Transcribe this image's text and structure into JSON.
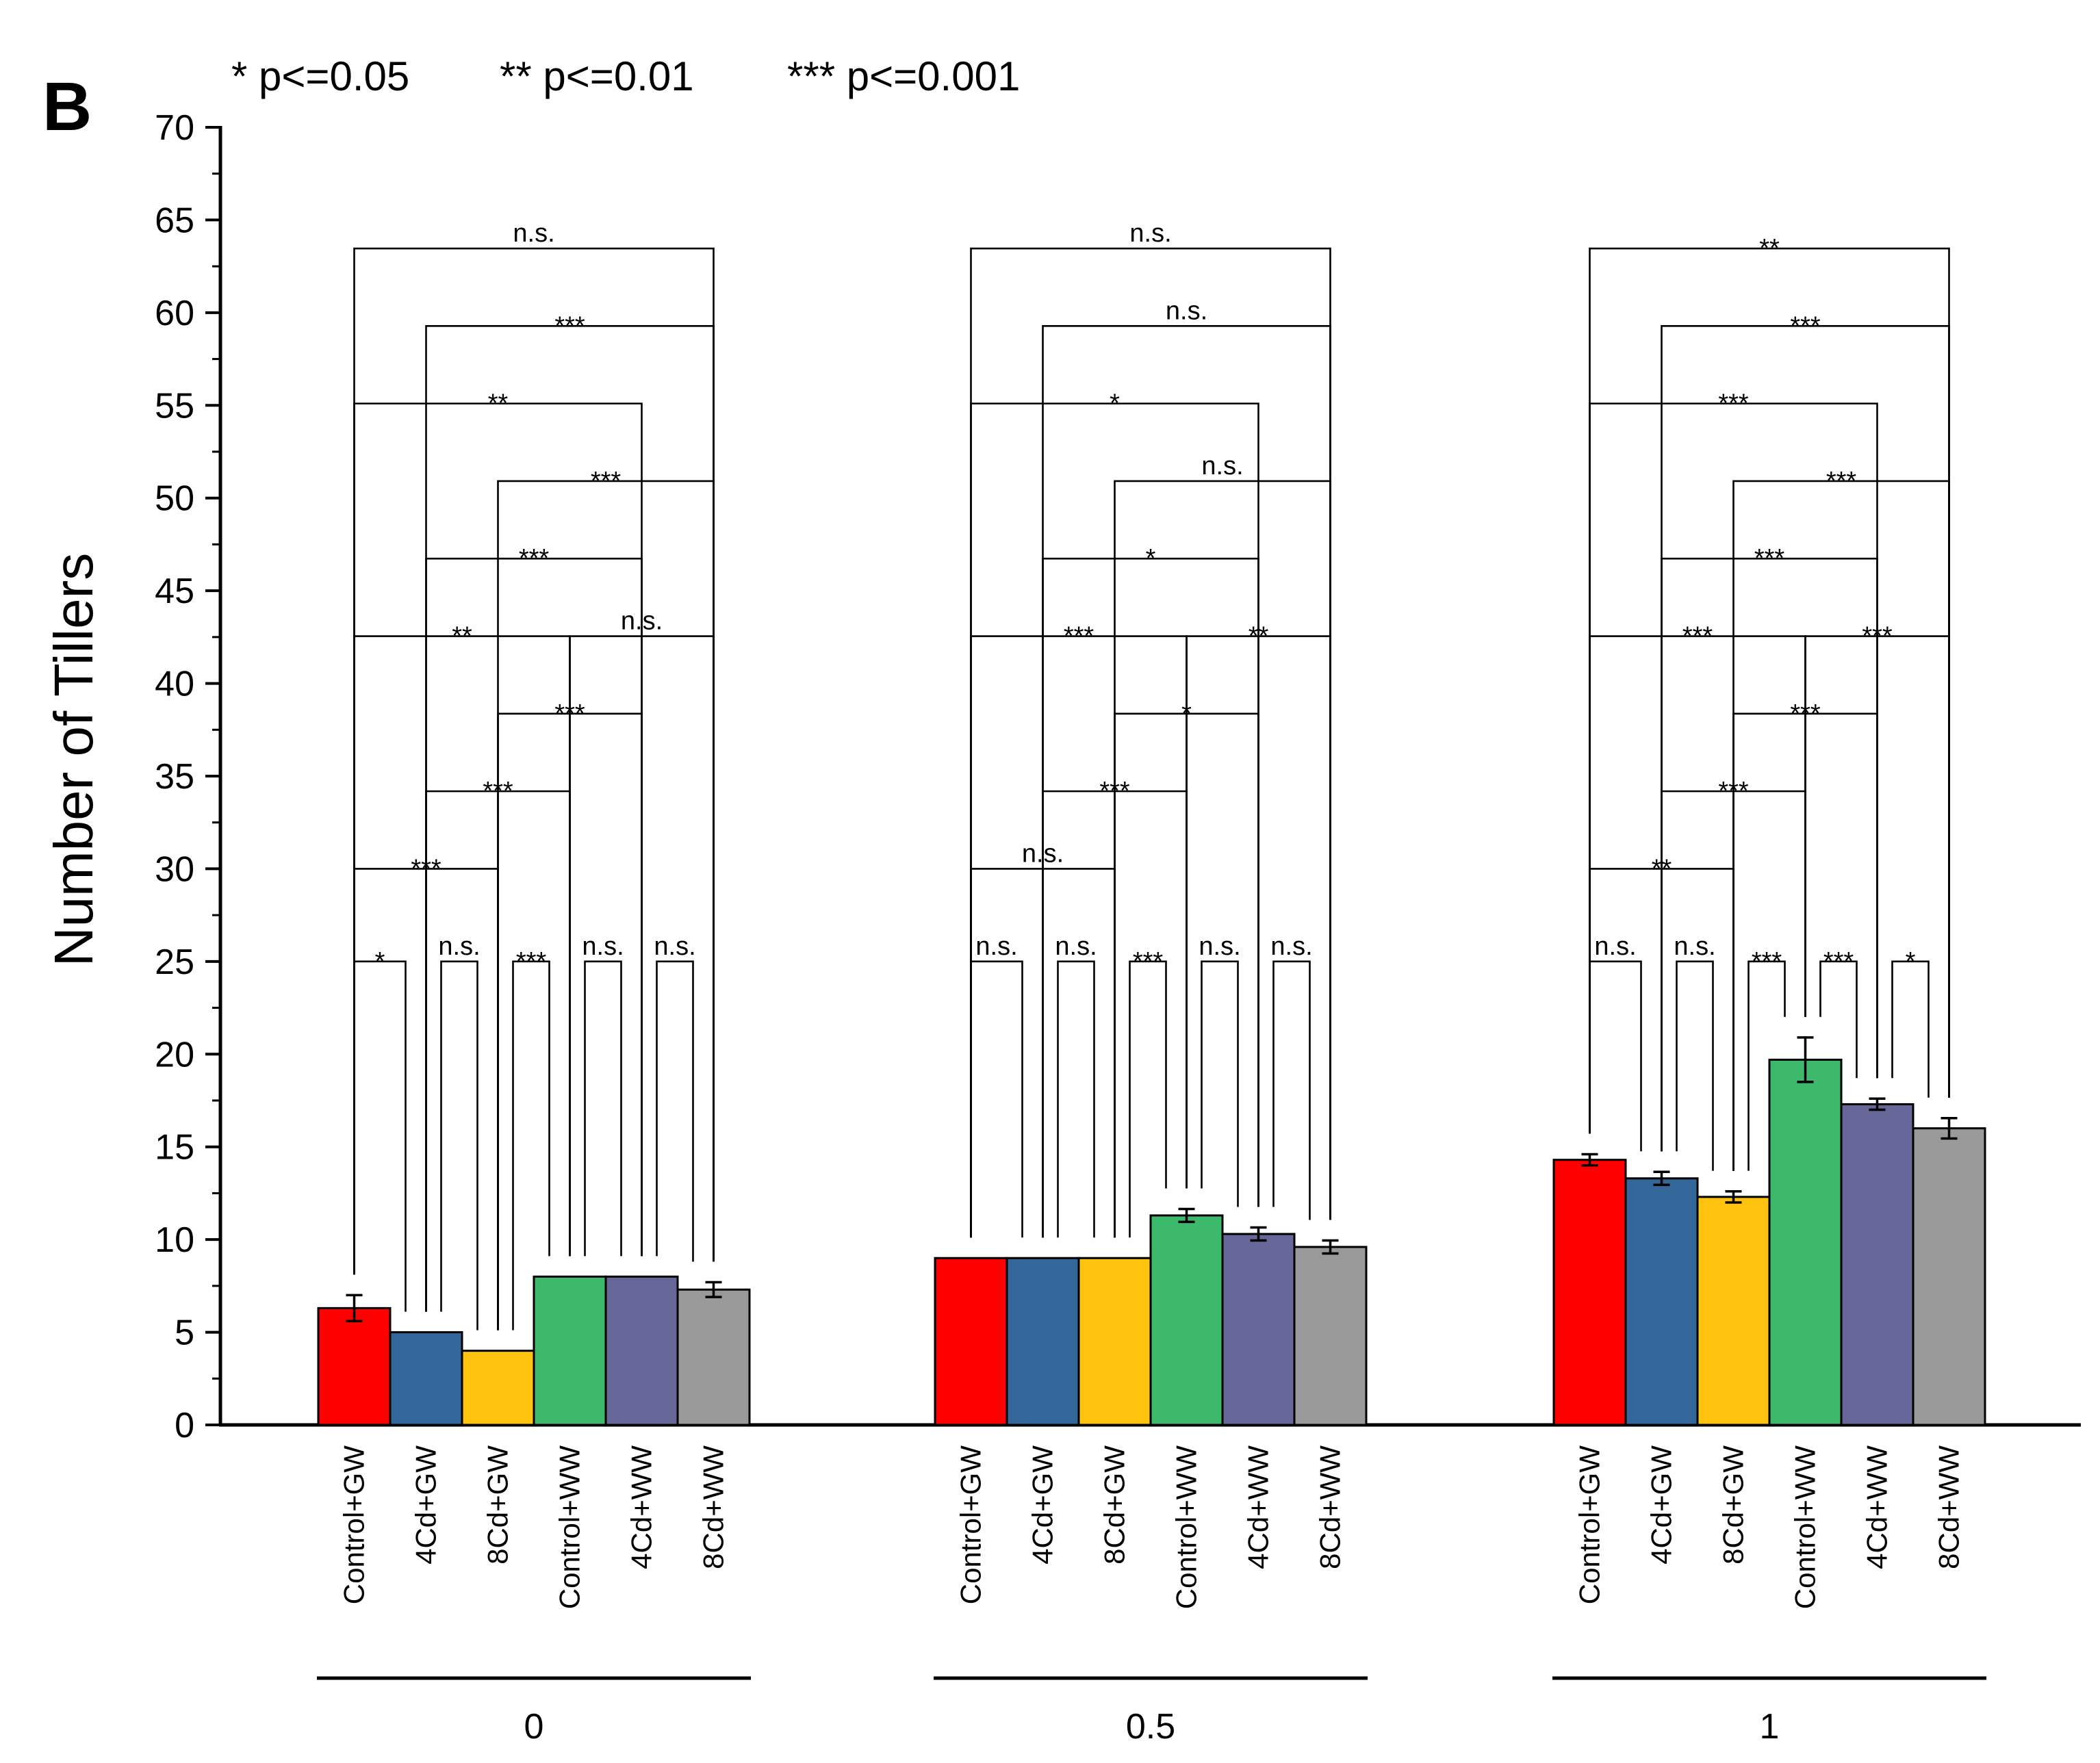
{
  "panel_letter": "B",
  "legend_text": [
    "* p<=0.05",
    "** p<=0.01",
    "*** p<=0.001"
  ],
  "chart_data": {
    "type": "bar",
    "ylabel": "Number of Tillers",
    "xlabel": "",
    "ylim": [
      0,
      70
    ],
    "y_ticks": [
      0,
      5,
      10,
      15,
      20,
      25,
      30,
      35,
      40,
      45,
      50,
      55,
      60,
      65,
      70
    ],
    "categories": [
      "Control+GW",
      "4Cd+GW",
      "8Cd+GW",
      "Control+WW",
      "4Cd+WW",
      "8Cd+WW"
    ],
    "colors": [
      "#ff0000",
      "#336699",
      "#ffc20e",
      "#3cb96a",
      "#666699",
      "#999999"
    ],
    "groups": [
      {
        "label": "0",
        "values": [
          6.3,
          5.0,
          4.0,
          8.0,
          8.0,
          7.3
        ],
        "errors": [
          0.7,
          0,
          0,
          0,
          0,
          0.4
        ],
        "comparisons": [
          {
            "a": 0,
            "b": 1,
            "label": "*"
          },
          {
            "a": 1,
            "b": 2,
            "label": "n.s."
          },
          {
            "a": 2,
            "b": 3,
            "label": "***"
          },
          {
            "a": 3,
            "b": 4,
            "label": "n.s."
          },
          {
            "a": 4,
            "b": 5,
            "label": "n.s."
          },
          {
            "a": 0,
            "b": 2,
            "label": "***"
          },
          {
            "a": 1,
            "b": 3,
            "label": "***"
          },
          {
            "a": 2,
            "b": 4,
            "label": "***"
          },
          {
            "a": 3,
            "b": 5,
            "label": "n.s."
          },
          {
            "a": 0,
            "b": 3,
            "label": "**"
          },
          {
            "a": 1,
            "b": 4,
            "label": "***"
          },
          {
            "a": 2,
            "b": 5,
            "label": "***"
          },
          {
            "a": 0,
            "b": 4,
            "label": "**"
          },
          {
            "a": 1,
            "b": 5,
            "label": "***"
          },
          {
            "a": 0,
            "b": 5,
            "label": "n.s."
          }
        ]
      },
      {
        "label": "0.5",
        "values": [
          9.0,
          9.0,
          9.0,
          11.3,
          10.3,
          9.6
        ],
        "errors": [
          0,
          0,
          0,
          0.35,
          0.35,
          0.35
        ],
        "comparisons": [
          {
            "a": 0,
            "b": 1,
            "label": "n.s."
          },
          {
            "a": 1,
            "b": 2,
            "label": "n.s."
          },
          {
            "a": 2,
            "b": 3,
            "label": "***"
          },
          {
            "a": 3,
            "b": 4,
            "label": "n.s."
          },
          {
            "a": 4,
            "b": 5,
            "label": "n.s."
          },
          {
            "a": 0,
            "b": 2,
            "label": "n.s."
          },
          {
            "a": 1,
            "b": 3,
            "label": "***"
          },
          {
            "a": 2,
            "b": 4,
            "label": "*"
          },
          {
            "a": 3,
            "b": 5,
            "label": "**"
          },
          {
            "a": 0,
            "b": 3,
            "label": "***"
          },
          {
            "a": 1,
            "b": 4,
            "label": "*"
          },
          {
            "a": 2,
            "b": 5,
            "label": "n.s."
          },
          {
            "a": 0,
            "b": 4,
            "label": "*"
          },
          {
            "a": 1,
            "b": 5,
            "label": "n.s."
          },
          {
            "a": 0,
            "b": 5,
            "label": "n.s."
          }
        ]
      },
      {
        "label": "1",
        "values": [
          14.3,
          13.3,
          12.3,
          19.7,
          17.3,
          16.0
        ],
        "errors": [
          0.3,
          0.35,
          0.3,
          1.2,
          0.3,
          0.55
        ],
        "comparisons": [
          {
            "a": 0,
            "b": 1,
            "label": "n.s."
          },
          {
            "a": 1,
            "b": 2,
            "label": "n.s."
          },
          {
            "a": 2,
            "b": 3,
            "label": "***"
          },
          {
            "a": 3,
            "b": 4,
            "label": "***"
          },
          {
            "a": 4,
            "b": 5,
            "label": "*"
          },
          {
            "a": 0,
            "b": 2,
            "label": "**"
          },
          {
            "a": 1,
            "b": 3,
            "label": "***"
          },
          {
            "a": 2,
            "b": 4,
            "label": "***"
          },
          {
            "a": 3,
            "b": 5,
            "label": "***"
          },
          {
            "a": 0,
            "b": 3,
            "label": "***"
          },
          {
            "a": 1,
            "b": 4,
            "label": "***"
          },
          {
            "a": 2,
            "b": 5,
            "label": "***"
          },
          {
            "a": 0,
            "b": 4,
            "label": "***"
          },
          {
            "a": 1,
            "b": 5,
            "label": "***"
          },
          {
            "a": 0,
            "b": 5,
            "label": "**"
          }
        ]
      }
    ]
  }
}
